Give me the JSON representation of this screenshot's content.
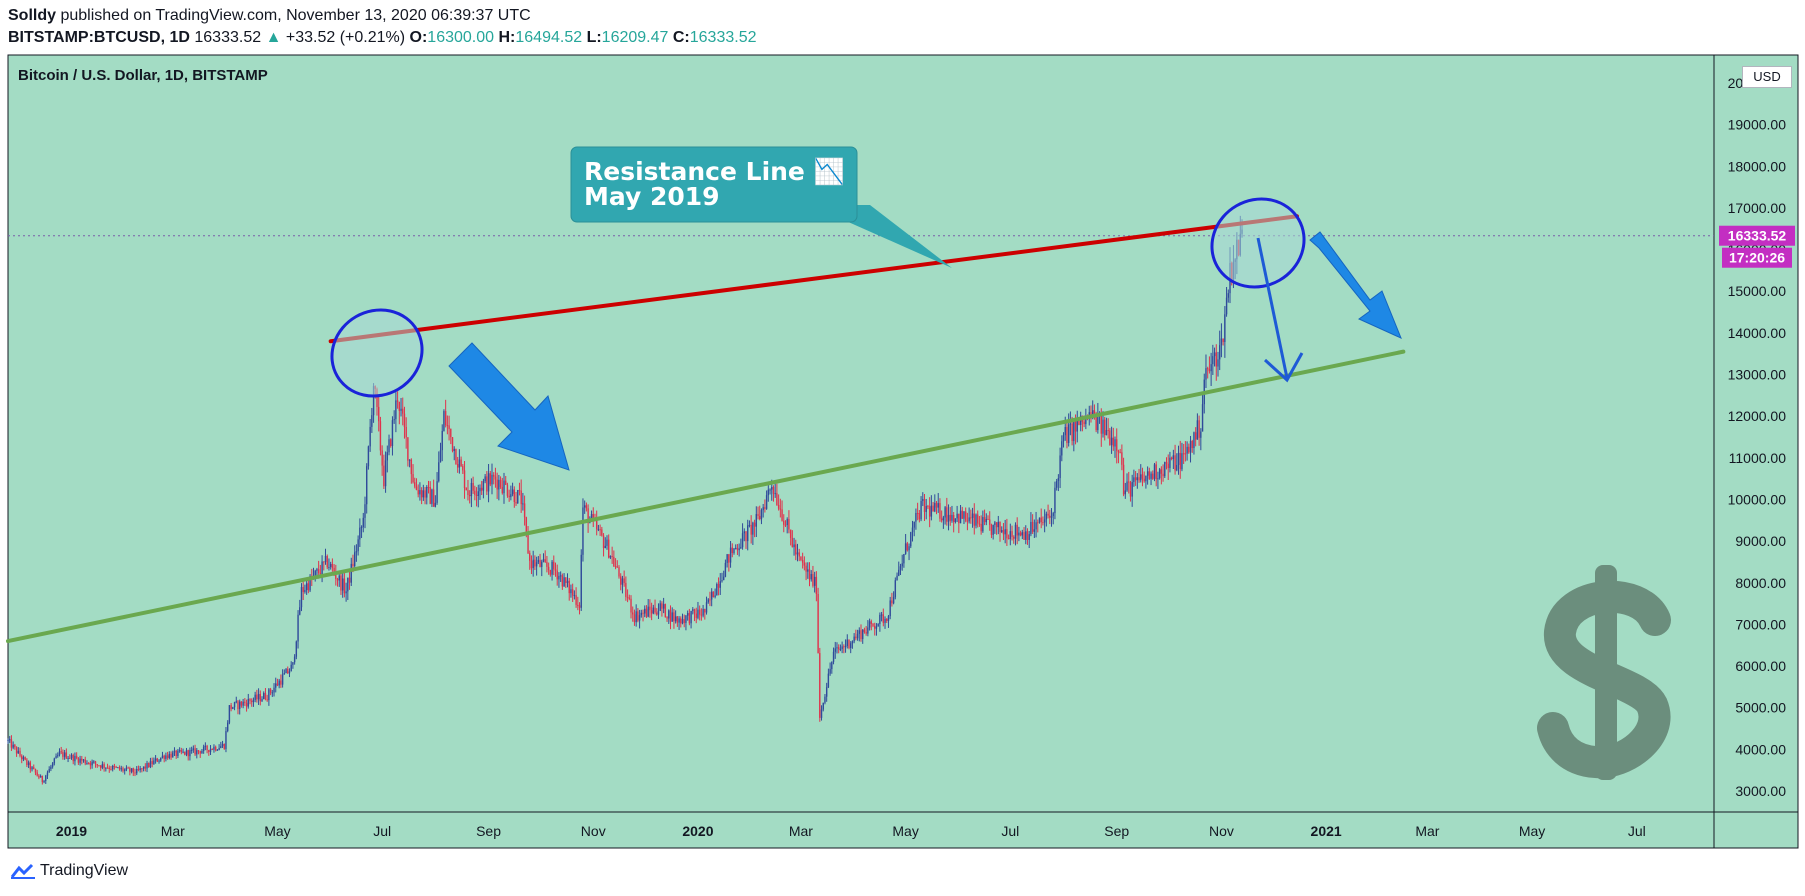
{
  "header": {
    "author": "Solldy",
    "published_text": "published on TradingView.com, November 13, 2020 06:39:37 UTC",
    "symbol": "BITSTAMP:BTCUSD, 1D",
    "last": "16333.52",
    "change_arrow": "▲",
    "change": "+33.52 (+0.21%)",
    "o_label": "O:",
    "o_value": "16300.00",
    "h_label": "H:",
    "h_value": "16494.52",
    "l_label": "L:",
    "l_value": "16209.47",
    "c_label": "C:",
    "c_value": "16333.52"
  },
  "chart_title": "Bitcoin / U.S. Dollar, 1D, BITSTAMP",
  "currency_label": "USD",
  "price_tag": "16333.52",
  "timer_tag": "17:20:26",
  "callout": {
    "line1": "Resistance Line 📉",
    "line2": "May 2019"
  },
  "footer": {
    "brand": "TradingView"
  },
  "colors": {
    "chart_bg": "#a3dcc4",
    "resistance": "#cc0000",
    "support": "#6aa84f",
    "callout_bg": "#31a7b0",
    "circles": "#1a23d9",
    "arrows": "#1e88e5",
    "price_tag": "#c32ec2",
    "candle_up": "#2f4a9a",
    "candle_down": "#e0314b",
    "dollar": "#6b8e7d"
  },
  "chart_data": {
    "type": "candlestick",
    "title": "Bitcoin / U.S. Dollar, 1D, BITSTAMP",
    "ylabel": "USD",
    "ylim": [
      2500,
      20500
    ],
    "y_ticks": [
      "3000.00",
      "4000.00",
      "5000.00",
      "6000.00",
      "7000.00",
      "8000.00",
      "9000.00",
      "10000.00",
      "11000.00",
      "12000.00",
      "13000.00",
      "14000.00",
      "15000.00",
      "16000.00",
      "17000.00",
      "18000.00",
      "19000.00",
      "20000.00"
    ],
    "x_ticks": [
      {
        "label": "2019",
        "date": "2019-01-01",
        "bold": true
      },
      {
        "label": "Mar",
        "date": "2019-03-01"
      },
      {
        "label": "May",
        "date": "2019-05-01"
      },
      {
        "label": "Jul",
        "date": "2019-07-01"
      },
      {
        "label": "Sep",
        "date": "2019-09-01"
      },
      {
        "label": "Nov",
        "date": "2019-11-01"
      },
      {
        "label": "2020",
        "date": "2020-01-01",
        "bold": true
      },
      {
        "label": "Mar",
        "date": "2020-03-01"
      },
      {
        "label": "May",
        "date": "2020-05-01"
      },
      {
        "label": "Jul",
        "date": "2020-07-01"
      },
      {
        "label": "Sep",
        "date": "2020-09-01"
      },
      {
        "label": "Nov",
        "date": "2020-11-01"
      },
      {
        "label": "2021",
        "date": "2021-01-01",
        "bold": true
      },
      {
        "label": "Mar",
        "date": "2021-03-01"
      },
      {
        "label": "May",
        "date": "2021-05-01"
      },
      {
        "label": "Jul",
        "date": "2021-07-01"
      }
    ],
    "price_path": [
      [
        "2018-11-25",
        4200
      ],
      [
        "2018-12-05",
        3700
      ],
      [
        "2018-12-15",
        3250
      ],
      [
        "2018-12-25",
        3900
      ],
      [
        "2019-01-10",
        3700
      ],
      [
        "2019-01-25",
        3550
      ],
      [
        "2019-02-08",
        3450
      ],
      [
        "2019-02-24",
        3850
      ],
      [
        "2019-03-15",
        3950
      ],
      [
        "2019-03-31",
        4100
      ],
      [
        "2019-04-03",
        5000
      ],
      [
        "2019-04-25",
        5300
      ],
      [
        "2019-05-10",
        6000
      ],
      [
        "2019-05-15",
        7800
      ],
      [
        "2019-05-30",
        8500
      ],
      [
        "2019-06-10",
        7800
      ],
      [
        "2019-06-20",
        9500
      ],
      [
        "2019-06-26",
        12800
      ],
      [
        "2019-07-02",
        10500
      ],
      [
        "2019-07-10",
        12500
      ],
      [
        "2019-07-20",
        10300
      ],
      [
        "2019-08-01",
        10000
      ],
      [
        "2019-08-06",
        12000
      ],
      [
        "2019-08-20",
        10200
      ],
      [
        "2019-09-05",
        10500
      ],
      [
        "2019-09-20",
        10000
      ],
      [
        "2019-09-25",
        8500
      ],
      [
        "2019-10-10",
        8300
      ],
      [
        "2019-10-24",
        7500
      ],
      [
        "2019-10-26",
        9800
      ],
      [
        "2019-11-10",
        8800
      ],
      [
        "2019-11-25",
        7200
      ],
      [
        "2019-12-10",
        7400
      ],
      [
        "2019-12-20",
        7100
      ],
      [
        "2020-01-05",
        7300
      ],
      [
        "2020-01-20",
        8700
      ],
      [
        "2020-02-05",
        9500
      ],
      [
        "2020-02-13",
        10400
      ],
      [
        "2020-02-28",
        8600
      ],
      [
        "2020-03-10",
        7900
      ],
      [
        "2020-03-12",
        4800
      ],
      [
        "2020-03-20",
        6300
      ],
      [
        "2020-04-05",
        6800
      ],
      [
        "2020-04-20",
        7200
      ],
      [
        "2020-05-01",
        8800
      ],
      [
        "2020-05-10",
        9800
      ],
      [
        "2020-06-01",
        9600
      ],
      [
        "2020-06-20",
        9300
      ],
      [
        "2020-07-10",
        9200
      ],
      [
        "2020-07-25",
        9600
      ],
      [
        "2020-08-01",
        11500
      ],
      [
        "2020-08-17",
        12000
      ],
      [
        "2020-09-03",
        11300
      ],
      [
        "2020-09-05",
        10200
      ],
      [
        "2020-09-25",
        10700
      ],
      [
        "2020-10-10",
        11000
      ],
      [
        "2020-10-20",
        11800
      ],
      [
        "2020-10-22",
        12900
      ],
      [
        "2020-11-01",
        13700
      ],
      [
        "2020-11-06",
        15500
      ],
      [
        "2020-11-13",
        16333
      ]
    ],
    "annotations": {
      "resistance_line": {
        "from": [
          "2019-06-01",
          13800
        ],
        "to": [
          "2020-12-15",
          16800
        ]
      },
      "support_line": {
        "from": [
          "2018-11-25",
          6600
        ],
        "to": [
          "2021-02-15",
          13550
        ]
      }
    }
  }
}
